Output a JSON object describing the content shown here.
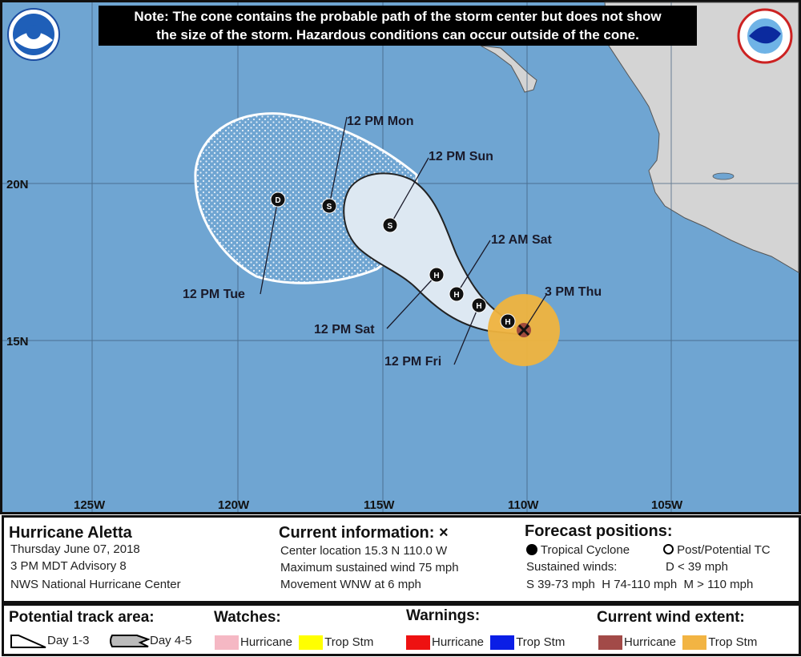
{
  "note": {
    "line1": "Note: The cone contains the probable path of the storm center but does not show",
    "line2": "the size of the storm. Hazardous conditions can occur outside of the cone."
  },
  "map": {
    "longitude_labels": [
      "125W",
      "120W",
      "115W",
      "110W",
      "105W"
    ],
    "latitude_labels": [
      "20N",
      "15N"
    ],
    "forecast_points": [
      {
        "label": "3 PM Thu",
        "symbol": "X"
      },
      {
        "label": "12 PM Fri",
        "symbol": "H"
      },
      {
        "label": "12 AM Sat",
        "symbol": "H"
      },
      {
        "label": "12 PM Sat",
        "symbol": "H"
      },
      {
        "label": "12 PM Sun",
        "symbol": "S"
      },
      {
        "label": "12 PM Mon",
        "symbol": "S"
      },
      {
        "label": "12 PM Tue",
        "symbol": "D"
      }
    ],
    "extra_point_symbol": "H",
    "colors": {
      "ocean": "#6fa5d2",
      "land": "#d4d4d4",
      "cone": "#dde8f2",
      "trop_stm_wind": "#efb33e",
      "hurricane_wind": "#a04a3c"
    }
  },
  "info": {
    "storm_name": "Hurricane Aletta",
    "date": "Thursday June 07, 2018",
    "advisory": "3 PM MDT Advisory 8",
    "agency": "NWS National Hurricane Center",
    "current_title": "Current information: ×",
    "center_location": "Center location 15.3 N 110.0 W",
    "max_wind": "Maximum sustained wind 75 mph",
    "movement": "Movement WNW at 6 mph",
    "forecast_title": "Forecast positions:",
    "tropical_cyclone": "Tropical Cyclone",
    "post_potential": "Post/Potential TC",
    "sustained_winds": "Sustained winds:",
    "d_range": "D < 39 mph",
    "shm_ranges": "S 39-73 mph  H 74-110 mph  M > 110 mph"
  },
  "legend": {
    "track_title": "Potential track area:",
    "day13": "Day 1-3",
    "day45": "Day 4-5",
    "watches_title": "Watches:",
    "warnings_title": "Warnings:",
    "wind_title": "Current wind extent:",
    "hurricane": "Hurricane",
    "trop_stm": "Trop Stm",
    "colors": {
      "watch_hurricane": "#f5b8c4",
      "watch_trop": "#ffff00",
      "warn_hurricane": "#ee1111",
      "warn_trop": "#0a1ee6",
      "wind_hurricane": "#a24a48",
      "wind_trop": "#f2b443"
    }
  }
}
